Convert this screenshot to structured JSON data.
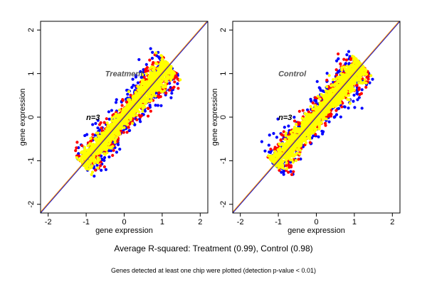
{
  "chart_data": [
    {
      "type": "scatter",
      "title": "Treatment",
      "annotation": "n=3",
      "xlabel": "gene expression",
      "ylabel": "gene expression",
      "xlim": [
        -2.2,
        2.2
      ],
      "ylim": [
        -2.2,
        2.2
      ],
      "xticks": [
        -2,
        -1,
        0,
        1,
        2
      ],
      "yticks": [
        -2,
        -1,
        0,
        1,
        2
      ],
      "reference_line": {
        "slope": 1,
        "intercept": 0
      },
      "point_range": [
        -1.1,
        1.2
      ],
      "series": [
        {
          "color": "#0000ff",
          "spread": 0.11
        },
        {
          "color": "#ff0000",
          "spread": 0.085
        },
        {
          "color": "#ffff00",
          "spread": 0.055
        }
      ]
    },
    {
      "type": "scatter",
      "title": "Control",
      "annotation": "n=3",
      "xlabel": "gene expression",
      "ylabel": "gene expression",
      "xlim": [
        -2.2,
        2.2
      ],
      "ylim": [
        -2.2,
        2.2
      ],
      "xticks": [
        -2,
        -1,
        0,
        1,
        2
      ],
      "yticks": [
        -2,
        -1,
        0,
        1,
        2
      ],
      "reference_line": {
        "slope": 1,
        "intercept": 0
      },
      "point_range": [
        -1.1,
        1.2
      ],
      "series": [
        {
          "color": "#0000ff",
          "spread": 0.12
        },
        {
          "color": "#ff0000",
          "spread": 0.09
        },
        {
          "color": "#ffff00",
          "spread": 0.06
        }
      ]
    }
  ],
  "captions": {
    "main": "Average R-squared: Treatment (0.99), Control (0.98)",
    "note": "Genes detected at least one chip were plotted (detection p-value < 0.01)"
  },
  "colors": {
    "reference_line_a": "#ff8c00",
    "reference_line_b": "#0000cc"
  }
}
